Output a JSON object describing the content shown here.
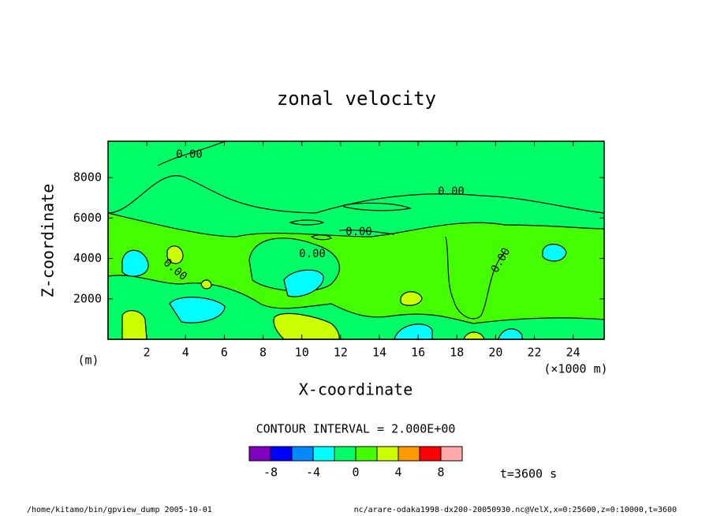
{
  "chart_data": {
    "type": "contour",
    "title": "zonal  velocity",
    "x_label": "X-coordinate",
    "y_label": "Z-coordinate",
    "x_unit": "(×1000 m)",
    "y_unit": "(m)",
    "xlim": [
      0,
      25.6
    ],
    "xticks": [
      2,
      4,
      6,
      8,
      10,
      12,
      14,
      16,
      18,
      20,
      22,
      24
    ],
    "ylim": [
      0,
      9800
    ],
    "yticks": [
      2000,
      4000,
      6000,
      8000
    ],
    "contour_label": "0.00",
    "contour_interval": "CONTOUR INTERVAL = 2.000E+00",
    "levels": [
      -10,
      -8,
      -6,
      -4,
      -2,
      0,
      2,
      4,
      6,
      8,
      10
    ],
    "colors": [
      "#8000c0",
      "#0000ff",
      "#0088ff",
      "#00ffff",
      "#00ff66",
      "#44ff00",
      "#ccff00",
      "#ff9900",
      "#ff0000",
      "#ffaaaa"
    ],
    "colorbar_ticks": [
      -8,
      -4,
      0,
      4,
      8
    ],
    "time": "t=3600 s"
  },
  "footer": {
    "left": "/home/kitamo/bin/gpview_dump  2005-10-01",
    "right": "nc/arare-odaka1998-dx200-20050930.nc@VelX,x=0:25600,z=0:10000,t=3600"
  }
}
